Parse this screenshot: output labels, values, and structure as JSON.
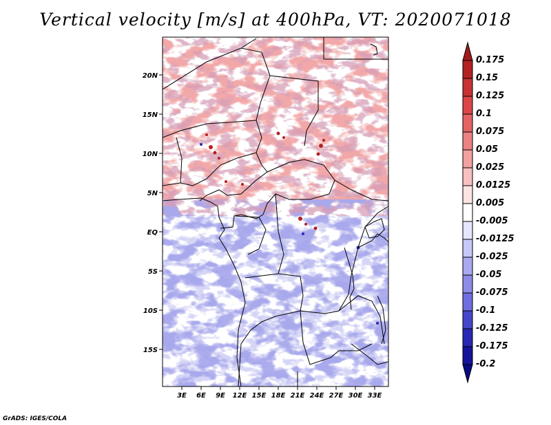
{
  "title": "Vertical velocity [m/s] at 400hPa, VT: 2020071018",
  "credit": "GrADS: IGES/COLA",
  "latitude_labels": [
    "20N",
    "15N",
    "10N",
    "5N",
    "EQ",
    "5S",
    "10S",
    "15S"
  ],
  "longitude_labels": [
    "3E",
    "6E",
    "9E",
    "12E",
    "15E",
    "18E",
    "21E",
    "24E",
    "27E",
    "30E",
    "33E"
  ],
  "colorbar": {
    "labels": [
      "0.175",
      "0.15",
      "0.125",
      "0.1",
      "0.075",
      "0.05",
      "0.025",
      "0.0125",
      "0.005",
      "-0.005",
      "-0.0125",
      "-0.025",
      "-0.05",
      "-0.075",
      "-0.1",
      "-0.125",
      "-0.175",
      "-0.2"
    ],
    "colors": [
      "#a01c1c",
      "#b22222",
      "#c83232",
      "#dc4646",
      "#e46464",
      "#ec8282",
      "#f2a0a0",
      "#f8c0c0",
      "#fde4e4",
      "#ffffff",
      "#e6e6ff",
      "#c8c8f8",
      "#aaaaf0",
      "#8c8ce8",
      "#6e6ee0",
      "#4646cc",
      "#2828b4",
      "#14149a",
      "#0a0a82"
    ]
  },
  "colors": {
    "positive": "#f09a9a",
    "negative": "#9a9ae8",
    "land_border": "#000000"
  }
}
